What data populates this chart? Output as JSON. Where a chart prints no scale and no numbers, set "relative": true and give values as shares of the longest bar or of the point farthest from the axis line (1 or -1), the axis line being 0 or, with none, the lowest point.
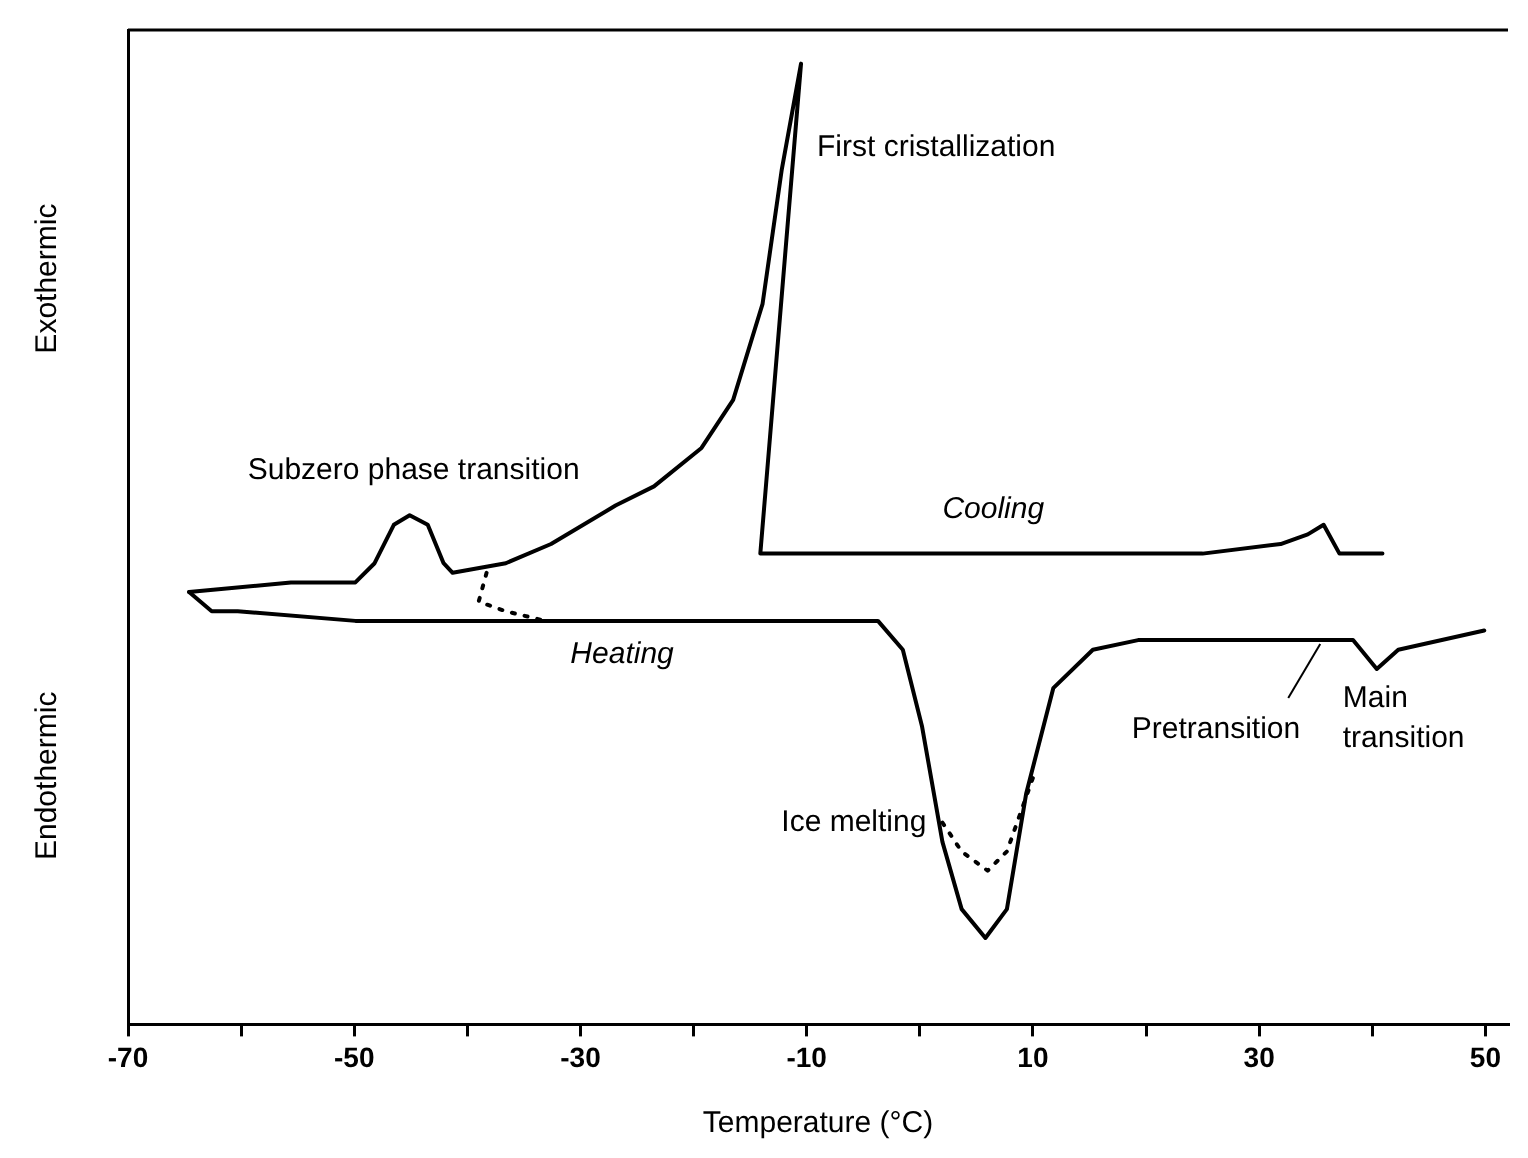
{
  "chart_data": {
    "type": "line",
    "relative": true,
    "xlabel": "Temperature (°C)",
    "xlim": [
      -70,
      52
    ],
    "xticks": [
      -70,
      {
        "value": -60,
        "label": null
      },
      -50,
      {
        "value": -40,
        "label": null
      },
      -30,
      {
        "value": -20,
        "label": null
      },
      -10,
      {
        "value": 0,
        "label": null
      },
      10,
      {
        "value": 20,
        "label": null
      },
      30,
      {
        "value": 40,
        "label": null
      },
      50
    ],
    "legend": false,
    "grid": false,
    "marker": "none",
    "line_style": "solid",
    "tick_labels": "x",
    "series": [
      {
        "name": "Cooling",
        "color": "#000000",
        "x": [
          40.9,
          37.1,
          35.7,
          34.3,
          31.9,
          25.0,
          -14.1,
          -10.5,
          -12.2,
          -13.9,
          -16.5,
          -19.3,
          -23.5,
          -26.9,
          -32.6,
          -36.6,
          -41.3,
          -42.1,
          -43.5,
          -45.1,
          -46.5,
          -48.2,
          -49.9,
          -55.6,
          -64.6
        ],
        "values": [
          0.49,
          0.49,
          0.52,
          0.51,
          0.5,
          0.49,
          0.49,
          1.0,
          0.89,
          0.75,
          0.65,
          0.6,
          0.56,
          0.54,
          0.5,
          0.48,
          0.47,
          0.48,
          0.52,
          0.53,
          0.52,
          0.48,
          0.46,
          0.46,
          0.45
        ]
      },
      {
        "name": "Heating",
        "color": "#000000",
        "x": [
          -64.6,
          -62.6,
          -60.3,
          -49.9,
          -32.6,
          -3.7,
          -1.5,
          0.2,
          2.0,
          3.7,
          5.8,
          7.7,
          9.4,
          11.8,
          15.3,
          19.3,
          30.9,
          35.4,
          38.3,
          40.4,
          42.3,
          49.9
        ],
        "values": [
          0.45,
          0.43,
          0.43,
          0.42,
          0.42,
          0.42,
          0.39,
          0.31,
          0.19,
          0.12,
          0.09,
          0.12,
          0.24,
          0.35,
          0.39,
          0.4,
          0.4,
          0.4,
          0.4,
          0.37,
          0.39,
          0.41
        ]
      },
      {
        "color": "#000000",
        "line_style": "dotted",
        "x": [
          -38.3,
          -39.0,
          -36.6,
          -33.1
        ],
        "values": [
          0.47,
          0.44,
          0.43,
          0.42
        ]
      },
      {
        "color": "#000000",
        "line_style": "dotted",
        "x": [
          2.0,
          3.7,
          6.0,
          7.7,
          10.1
        ],
        "values": [
          0.21,
          0.18,
          0.16,
          0.18,
          0.26
        ]
      }
    ],
    "annotations": [
      "Exothermic",
      "Endothermic",
      {
        "text": "Subzero phase transition",
        "x": -45.1,
        "y": 0.53
      },
      {
        "text": "First cristallization",
        "x": -10.5,
        "y": 1.0
      },
      {
        "text": "Ice melting",
        "x": 2.0,
        "y": 0.21
      },
      {
        "text": "Pretransition",
        "x": 35.4,
        "y": 0.4
      },
      {
        "text": "Main transition",
        "x": 40.4,
        "y": 0.37
      }
    ]
  }
}
